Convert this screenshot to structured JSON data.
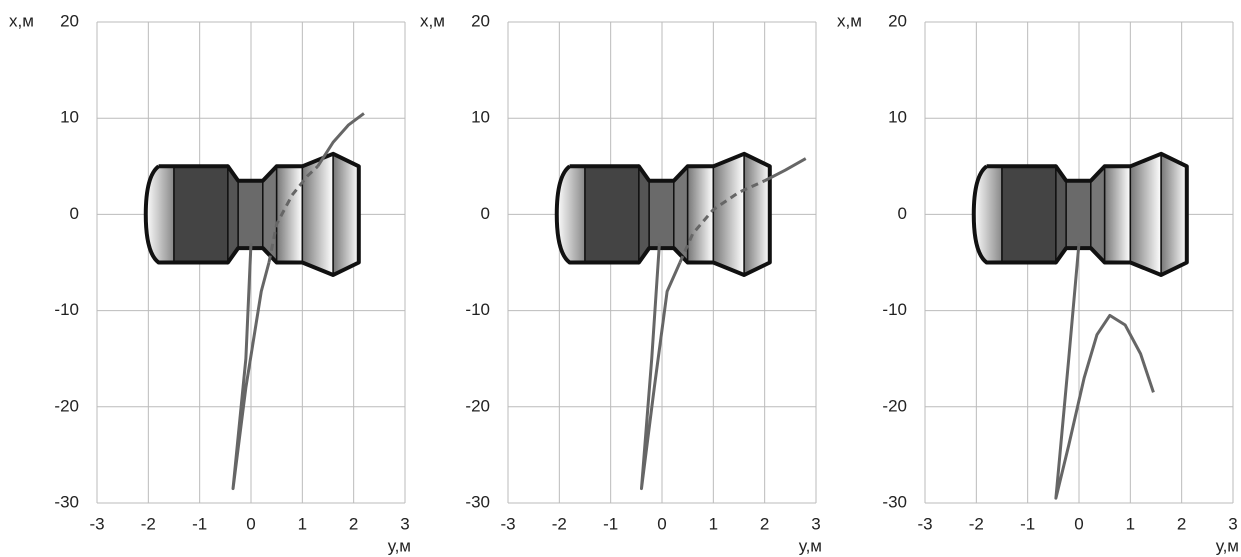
{
  "chart_data": [
    {
      "type": "line",
      "x_label": "у,м",
      "y_label": "x,м",
      "xlim": [
        -3,
        3
      ],
      "ylim": [
        -30,
        20
      ],
      "xticks": [
        -3,
        -2,
        -1,
        0,
        1,
        2,
        3
      ],
      "yticks": [
        -30,
        -20,
        -10,
        0,
        10,
        20
      ],
      "grid": true,
      "series": [
        {
          "color": "#666666",
          "style": "solid",
          "x": [
            0,
            -0.1,
            -0.35,
            -0.1,
            0.2,
            0.35
          ],
          "values": [
            -3,
            -15,
            -28.5,
            -18,
            -8,
            -5
          ]
        },
        {
          "color": "#666666",
          "style": "dashed",
          "x": [
            0.35,
            0.5,
            0.8,
            1.1,
            1.3
          ],
          "values": [
            -5,
            -1,
            2,
            4,
            5
          ]
        },
        {
          "color": "#666666",
          "style": "solid",
          "x": [
            1.3,
            1.6,
            1.9,
            2.2
          ],
          "values": [
            5,
            7.5,
            9.3,
            10.5
          ]
        }
      ]
    },
    {
      "type": "line",
      "x_label": "у,м",
      "y_label": "x,м",
      "xlim": [
        -3,
        3
      ],
      "ylim": [
        -30,
        20
      ],
      "xticks": [
        -3,
        -2,
        -1,
        0,
        1,
        2,
        3
      ],
      "yticks": [
        -30,
        -20,
        -10,
        0,
        10,
        20
      ],
      "grid": true,
      "series": [
        {
          "color": "#666666",
          "style": "solid",
          "x": [
            -0.05,
            -0.2,
            -0.4,
            -0.15,
            0.1,
            0.35
          ],
          "values": [
            -3,
            -15,
            -28.5,
            -18,
            -8,
            -5
          ]
        },
        {
          "color": "#666666",
          "style": "dashed",
          "x": [
            0.35,
            0.6,
            1.0,
            1.5,
            2.0
          ],
          "values": [
            -5,
            -2,
            0.5,
            2.3,
            3.5
          ]
        },
        {
          "color": "#666666",
          "style": "solid",
          "x": [
            2.0,
            2.4,
            2.8
          ],
          "values": [
            3.5,
            4.6,
            5.8
          ]
        }
      ]
    },
    {
      "type": "line",
      "x_label": "у,м",
      "y_label": "x,м",
      "xlim": [
        -3,
        3
      ],
      "ylim": [
        -30,
        20
      ],
      "xticks": [
        -3,
        -2,
        -1,
        0,
        1,
        2,
        3
      ],
      "yticks": [
        -30,
        -20,
        -10,
        0,
        10,
        20
      ],
      "grid": true,
      "series": [
        {
          "color": "#666666",
          "style": "solid",
          "x": [
            0,
            -0.2,
            -0.45,
            -0.2,
            0.1,
            0.35,
            0.6,
            0.9,
            1.2,
            1.45
          ],
          "values": [
            -3,
            -15,
            -29.5,
            -24,
            -17,
            -12.5,
            -10.5,
            -11.5,
            -14.5,
            -18.5
          ]
        }
      ]
    }
  ]
}
